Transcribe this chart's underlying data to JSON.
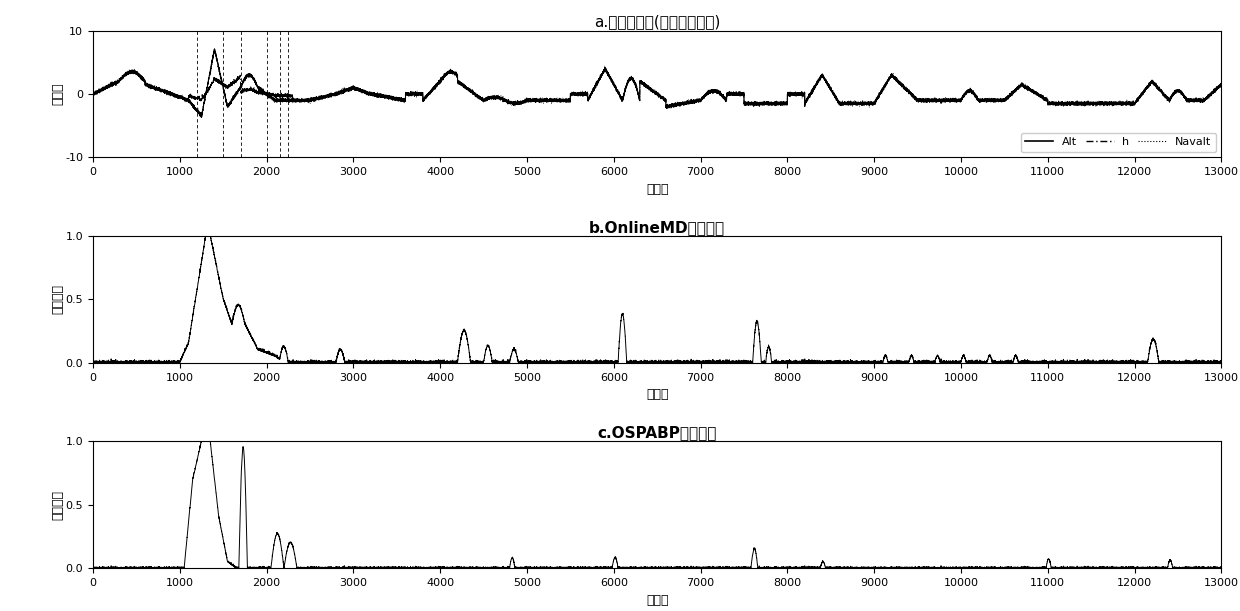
{
  "title_a": "a.高度类数据(滑窗归一化后)",
  "title_b": "b.OnlineMD异常分数",
  "title_c": "c.OSPABP异常分数",
  "xlabel": "采样点",
  "ylabel_a": "高度値",
  "ylabel_bc": "异常分数",
  "xlim": [
    0,
    13000
  ],
  "ylim_a": [
    -10,
    10
  ],
  "ylim_bc": [
    0,
    1
  ],
  "xticks": [
    0,
    1000,
    2000,
    3000,
    4000,
    5000,
    6000,
    7000,
    8000,
    9000,
    10000,
    11000,
    12000,
    13000
  ],
  "yticks_a": [
    -10,
    0,
    10
  ],
  "yticks_bc": [
    0,
    0.5,
    1
  ],
  "legend_labels": [
    "Alt",
    "h",
    "Navalt"
  ],
  "vline_positions": [
    1200,
    1500,
    1700,
    2000,
    2150,
    2250
  ],
  "fig_width": 12.4,
  "fig_height": 6.11,
  "dpi": 100
}
